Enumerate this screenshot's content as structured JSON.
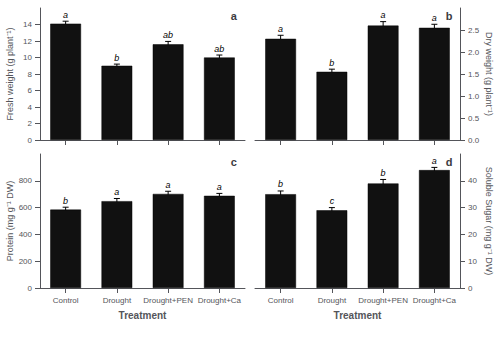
{
  "chart_data": [
    {
      "type": "bar",
      "title": "a",
      "categories": [
        "Control",
        "Drought",
        "Drought+PEN",
        "Drought+Ca"
      ],
      "values": [
        14.1,
        9.0,
        11.6,
        10.0
      ],
      "errors": [
        0.3,
        0.2,
        0.35,
        0.3
      ],
      "annotations": [
        "a",
        "b",
        "ab",
        "ab"
      ],
      "ylabel": "Fresh weight (g plant⁻¹)",
      "ylim": [
        0,
        16
      ],
      "yticks": [
        0,
        2,
        4,
        6,
        8,
        10,
        12,
        14
      ],
      "color": "#111111",
      "grid": false,
      "tick_labels": "y"
    },
    {
      "type": "bar",
      "title": "b",
      "categories": [
        "Control",
        "Drought",
        "Drought+PEN",
        "Drought+Ca"
      ],
      "values": [
        2.3,
        1.55,
        2.6,
        2.55
      ],
      "errors": [
        0.08,
        0.06,
        0.09,
        0.08
      ],
      "annotations": [
        "a",
        "b",
        "a",
        "a"
      ],
      "ylabel": "Dry weight (g plant⁻¹)",
      "ylim": [
        0,
        3
      ],
      "yticks": [
        {
          "value": 0,
          "label": "0.0"
        },
        0.5,
        {
          "value": 1.0,
          "label": "1.0"
        },
        1.5,
        {
          "value": 2.0,
          "label": "2.0"
        },
        2.5
      ],
      "color": "#111111",
      "grid": false,
      "tick_labels": "y"
    },
    {
      "type": "bar",
      "title": "c",
      "categories": [
        "Control",
        "Drought",
        "Drought+PEN",
        "Drought+Ca"
      ],
      "values": [
        585,
        648,
        702,
        688
      ],
      "errors": [
        18,
        20,
        20,
        18
      ],
      "annotations": [
        "b",
        "a",
        "a",
        "a"
      ],
      "xlabel": "Treatment",
      "ylabel": "Protein (mg g⁻¹ DW)",
      "ylim": [
        0,
        1000
      ],
      "yticks": [
        0,
        200,
        400,
        600,
        800
      ],
      "color": "#111111",
      "grid": false
    },
    {
      "type": "bar",
      "title": "d",
      "categories": [
        "Control",
        "Drought",
        "Drought+PEN",
        "Drought+Ca"
      ],
      "values": [
        35,
        29,
        39,
        44
      ],
      "errors": [
        1.2,
        1.0,
        1.5,
        1.0
      ],
      "annotations": [
        "b",
        "c",
        "b",
        "a"
      ],
      "xlabel": "Treatment",
      "ylabel": "Soluble Sugar (mg g⁻¹ DW)",
      "ylim": [
        0,
        50
      ],
      "yticks": [
        0,
        10,
        20,
        30,
        40
      ],
      "color": "#111111",
      "grid": false
    }
  ]
}
